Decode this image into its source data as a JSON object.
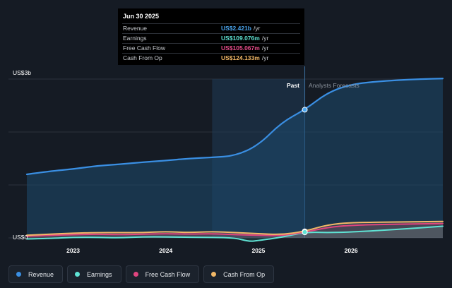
{
  "tooltip": {
    "date": "Jun 30 2025",
    "rows": [
      {
        "label": "Revenue",
        "value": "US$2.421b",
        "unit": "/yr",
        "color": "#4aa6f0"
      },
      {
        "label": "Earnings",
        "value": "US$109.076m",
        "unit": "/yr",
        "color": "#5fe3d4"
      },
      {
        "label": "Free Cash Flow",
        "value": "US$105.067m",
        "unit": "/yr",
        "color": "#ea4d8c"
      },
      {
        "label": "Cash From Op",
        "value": "US$124.133m",
        "unit": "/yr",
        "color": "#f2b867"
      }
    ]
  },
  "labels": {
    "y_top": "US$3b",
    "y_bottom": "US$0",
    "past": "Past",
    "forecast": "Analysts Forecasts"
  },
  "legend": [
    {
      "label": "Revenue",
      "color": "#3a8fe3"
    },
    {
      "label": "Earnings",
      "color": "#5fe3d4"
    },
    {
      "label": "Free Cash Flow",
      "color": "#e0457f"
    },
    {
      "label": "Cash From Op",
      "color": "#f2b867"
    }
  ],
  "chart_data": {
    "type": "area",
    "x_unit": "year",
    "y_unit": "US$b",
    "ylim": [
      0,
      3.0
    ],
    "xlim": [
      2022.5,
      2026.99
    ],
    "x_ticks": [
      "2023",
      "2024",
      "2025",
      "2026"
    ],
    "x_tick_values": [
      2023,
      2024,
      2025,
      2026
    ],
    "highlight_date": 2025.5,
    "past_shade_start": 2024.5,
    "series": [
      {
        "name": "Revenue",
        "color": "#3a8fe3",
        "points": [
          [
            2022.5,
            1.2
          ],
          [
            2022.75,
            1.26
          ],
          [
            2023.0,
            1.3
          ],
          [
            2023.25,
            1.36
          ],
          [
            2023.5,
            1.39
          ],
          [
            2023.75,
            1.43
          ],
          [
            2024.0,
            1.46
          ],
          [
            2024.25,
            1.5
          ],
          [
            2024.5,
            1.52
          ],
          [
            2024.75,
            1.55
          ],
          [
            2025.0,
            1.75
          ],
          [
            2025.25,
            2.18
          ],
          [
            2025.5,
            2.421
          ],
          [
            2025.75,
            2.75
          ],
          [
            2026.0,
            2.9
          ],
          [
            2026.25,
            2.95
          ],
          [
            2026.5,
            2.98
          ],
          [
            2026.75,
            3.0
          ],
          [
            2026.99,
            3.01
          ]
        ]
      },
      {
        "name": "Earnings",
        "color": "#5fe3d4",
        "points": [
          [
            2022.5,
            -0.02
          ],
          [
            2022.75,
            -0.01
          ],
          [
            2023.0,
            0.01
          ],
          [
            2023.25,
            0.01
          ],
          [
            2023.5,
            0.0
          ],
          [
            2023.75,
            0.02
          ],
          [
            2024.0,
            0.02
          ],
          [
            2024.25,
            0.01
          ],
          [
            2024.5,
            0.01
          ],
          [
            2024.75,
            0.0
          ],
          [
            2024.9,
            -0.07
          ],
          [
            2025.0,
            -0.05
          ],
          [
            2025.25,
            0.01
          ],
          [
            2025.5,
            0.109
          ],
          [
            2025.75,
            0.1
          ],
          [
            2026.0,
            0.11
          ],
          [
            2026.5,
            0.16
          ],
          [
            2026.99,
            0.22
          ]
        ]
      },
      {
        "name": "Free Cash Flow",
        "color": "#e0457f",
        "points": [
          [
            2022.5,
            0.03
          ],
          [
            2022.75,
            0.05
          ],
          [
            2023.0,
            0.06
          ],
          [
            2023.25,
            0.07
          ],
          [
            2023.5,
            0.06
          ],
          [
            2023.75,
            0.07
          ],
          [
            2024.0,
            0.08
          ],
          [
            2024.25,
            0.07
          ],
          [
            2024.5,
            0.08
          ],
          [
            2024.75,
            0.06
          ],
          [
            2025.0,
            0.05
          ],
          [
            2025.25,
            0.04
          ],
          [
            2025.5,
            0.105
          ],
          [
            2025.75,
            0.2
          ],
          [
            2026.0,
            0.24
          ],
          [
            2026.5,
            0.26
          ],
          [
            2026.99,
            0.27
          ]
        ]
      },
      {
        "name": "Cash From Op",
        "color": "#f2b867",
        "points": [
          [
            2022.5,
            0.05
          ],
          [
            2022.75,
            0.07
          ],
          [
            2023.0,
            0.09
          ],
          [
            2023.25,
            0.1
          ],
          [
            2023.5,
            0.1
          ],
          [
            2023.75,
            0.1
          ],
          [
            2024.0,
            0.12
          ],
          [
            2024.25,
            0.1
          ],
          [
            2024.5,
            0.12
          ],
          [
            2024.75,
            0.1
          ],
          [
            2025.0,
            0.08
          ],
          [
            2025.25,
            0.06
          ],
          [
            2025.5,
            0.124
          ],
          [
            2025.75,
            0.25
          ],
          [
            2026.0,
            0.29
          ],
          [
            2026.5,
            0.3
          ],
          [
            2026.99,
            0.31
          ]
        ]
      }
    ]
  }
}
